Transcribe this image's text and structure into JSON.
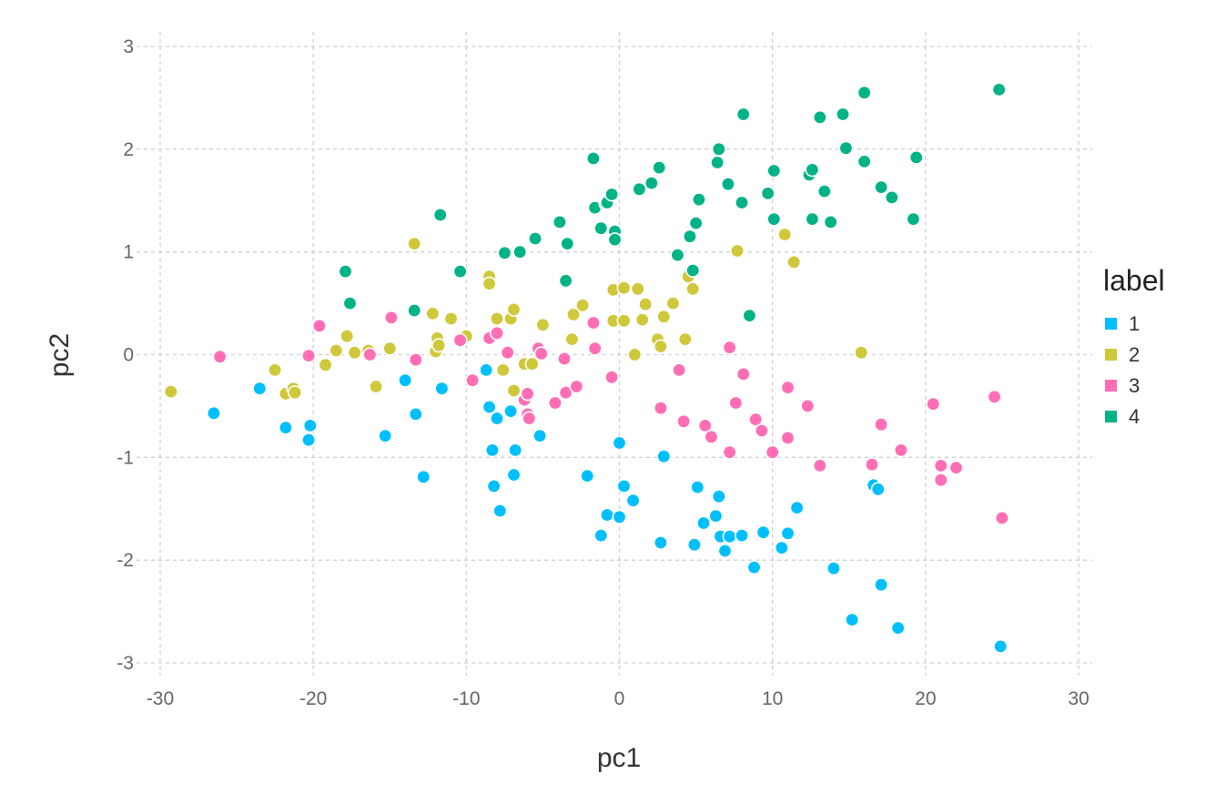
{
  "chart_data": {
    "type": "scatter",
    "xlabel": "pc1",
    "ylabel": "pc2",
    "xlim": [
      -30,
      30
    ],
    "ylim": [
      -3,
      3
    ],
    "xticks": [
      -30,
      -20,
      -10,
      0,
      10,
      20,
      30
    ],
    "yticks": [
      -3,
      -2,
      -1,
      0,
      1,
      2,
      3
    ],
    "grid": true,
    "legend": {
      "title": "label",
      "placement": "right"
    },
    "series": [
      {
        "name": "1",
        "color": "#00BFFF",
        "points": [
          [
            -26.5,
            -0.57
          ],
          [
            -23.5,
            -0.33
          ],
          [
            -21.8,
            -0.71
          ],
          [
            -20.2,
            -0.69
          ],
          [
            -20.3,
            -0.83
          ],
          [
            -15.3,
            -0.79
          ],
          [
            -14.0,
            -0.25
          ],
          [
            -13.3,
            -0.58
          ],
          [
            -12.8,
            -1.19
          ],
          [
            -11.6,
            -0.33
          ],
          [
            -8.7,
            -0.15
          ],
          [
            -8.5,
            -0.51
          ],
          [
            -8.3,
            -0.93
          ],
          [
            -8.2,
            -1.28
          ],
          [
            -8.0,
            -0.62
          ],
          [
            -7.8,
            -1.52
          ],
          [
            -7.1,
            -0.55
          ],
          [
            -6.9,
            -1.17
          ],
          [
            -6.8,
            -0.93
          ],
          [
            -5.2,
            -0.79
          ],
          [
            -2.1,
            -1.18
          ],
          [
            -1.2,
            -1.76
          ],
          [
            -0.8,
            -1.56
          ],
          [
            0.0,
            -0.86
          ],
          [
            0.0,
            -1.58
          ],
          [
            0.3,
            -1.28
          ],
          [
            0.9,
            -1.42
          ],
          [
            2.7,
            -1.83
          ],
          [
            2.9,
            -0.99
          ],
          [
            4.9,
            -1.85
          ],
          [
            5.1,
            -1.29
          ],
          [
            5.5,
            -1.64
          ],
          [
            6.3,
            -1.57
          ],
          [
            6.5,
            -1.38
          ],
          [
            6.6,
            -1.77
          ],
          [
            6.9,
            -1.91
          ],
          [
            7.2,
            -1.77
          ],
          [
            8.0,
            -1.76
          ],
          [
            8.8,
            -2.07
          ],
          [
            9.4,
            -1.73
          ],
          [
            10.6,
            -1.88
          ],
          [
            11.0,
            -1.74
          ],
          [
            11.6,
            -1.49
          ],
          [
            14.0,
            -2.08
          ],
          [
            15.2,
            -2.58
          ],
          [
            16.6,
            -1.27
          ],
          [
            16.9,
            -1.31
          ],
          [
            17.1,
            -2.24
          ],
          [
            18.2,
            -2.66
          ],
          [
            24.9,
            -2.84
          ]
        ]
      },
      {
        "name": "2",
        "color": "#CFC83A",
        "points": [
          [
            -29.3,
            -0.36
          ],
          [
            -22.5,
            -0.15
          ],
          [
            -21.8,
            -0.38
          ],
          [
            -21.3,
            -0.33
          ],
          [
            -21.2,
            -0.37
          ],
          [
            -19.2,
            -0.1
          ],
          [
            -18.5,
            0.04
          ],
          [
            -17.8,
            0.18
          ],
          [
            -17.3,
            0.02
          ],
          [
            -16.4,
            0.04
          ],
          [
            -15.9,
            -0.31
          ],
          [
            -15.0,
            0.06
          ],
          [
            -13.4,
            1.08
          ],
          [
            -12.2,
            0.4
          ],
          [
            -12.0,
            0.03
          ],
          [
            -11.9,
            0.16
          ],
          [
            -11.8,
            0.09
          ],
          [
            -11.0,
            0.35
          ],
          [
            -10.0,
            0.18
          ],
          [
            -8.5,
            0.76
          ],
          [
            -8.5,
            0.69
          ],
          [
            -8.0,
            0.35
          ],
          [
            -7.6,
            -0.15
          ],
          [
            -7.1,
            0.35
          ],
          [
            -6.9,
            0.44
          ],
          [
            -6.9,
            -0.35
          ],
          [
            -6.2,
            -0.09
          ],
          [
            -5.7,
            -0.09
          ],
          [
            -5.0,
            0.29
          ],
          [
            -3.1,
            0.15
          ],
          [
            -3.0,
            0.39
          ],
          [
            -2.4,
            0.48
          ],
          [
            -0.4,
            0.63
          ],
          [
            -0.4,
            0.33
          ],
          [
            0.3,
            0.65
          ],
          [
            0.3,
            0.33
          ],
          [
            1.0,
            0.0
          ],
          [
            1.2,
            0.64
          ],
          [
            1.5,
            0.34
          ],
          [
            1.7,
            0.49
          ],
          [
            2.5,
            0.15
          ],
          [
            2.7,
            0.08
          ],
          [
            2.9,
            0.37
          ],
          [
            3.5,
            0.5
          ],
          [
            4.3,
            0.15
          ],
          [
            4.5,
            0.76
          ],
          [
            4.8,
            0.64
          ],
          [
            7.7,
            1.01
          ],
          [
            10.8,
            1.17
          ],
          [
            11.4,
            0.9
          ],
          [
            15.8,
            0.02
          ]
        ]
      },
      {
        "name": "3",
        "color": "#FF6EB4",
        "points": [
          [
            -26.1,
            -0.02
          ],
          [
            -20.3,
            -0.01
          ],
          [
            -19.6,
            0.28
          ],
          [
            -16.3,
            0.0
          ],
          [
            -14.9,
            0.36
          ],
          [
            -13.3,
            -0.05
          ],
          [
            -10.4,
            0.14
          ],
          [
            -9.6,
            -0.25
          ],
          [
            -8.5,
            0.16
          ],
          [
            -8.0,
            0.21
          ],
          [
            -7.3,
            0.02
          ],
          [
            -6.2,
            -0.44
          ],
          [
            -6.0,
            -0.38
          ],
          [
            -6.0,
            -0.58
          ],
          [
            -5.9,
            -0.62
          ],
          [
            -5.3,
            0.06
          ],
          [
            -5.1,
            0.01
          ],
          [
            -4.2,
            -0.47
          ],
          [
            -3.6,
            -0.04
          ],
          [
            -3.5,
            -0.37
          ],
          [
            -2.8,
            -0.31
          ],
          [
            -1.7,
            0.31
          ],
          [
            -1.6,
            0.06
          ],
          [
            -0.5,
            -0.22
          ],
          [
            2.7,
            -0.52
          ],
          [
            3.9,
            -0.15
          ],
          [
            4.2,
            -0.65
          ],
          [
            5.6,
            -0.69
          ],
          [
            6.0,
            -0.8
          ],
          [
            7.2,
            0.07
          ],
          [
            7.2,
            -0.95
          ],
          [
            7.6,
            -0.47
          ],
          [
            8.1,
            -0.19
          ],
          [
            8.9,
            -0.63
          ],
          [
            9.3,
            -0.74
          ],
          [
            10.0,
            -0.95
          ],
          [
            11.0,
            -0.32
          ],
          [
            11.0,
            -0.81
          ],
          [
            12.3,
            -0.5
          ],
          [
            13.1,
            -1.08
          ],
          [
            16.5,
            -1.07
          ],
          [
            17.1,
            -0.68
          ],
          [
            18.4,
            -0.93
          ],
          [
            20.5,
            -0.48
          ],
          [
            21.0,
            -1.08
          ],
          [
            21.0,
            -1.22
          ],
          [
            22.0,
            -1.1
          ],
          [
            24.5,
            -0.41
          ],
          [
            25.0,
            -1.59
          ]
        ]
      },
      {
        "name": "4",
        "color": "#00B386",
        "points": [
          [
            -17.9,
            0.81
          ],
          [
            -17.6,
            0.5
          ],
          [
            -13.4,
            0.43
          ],
          [
            -11.7,
            1.36
          ],
          [
            -10.4,
            0.81
          ],
          [
            -7.5,
            0.99
          ],
          [
            -6.5,
            1.0
          ],
          [
            -5.5,
            1.13
          ],
          [
            -3.9,
            1.29
          ],
          [
            -3.5,
            0.72
          ],
          [
            -3.4,
            1.08
          ],
          [
            -1.7,
            1.91
          ],
          [
            -1.6,
            1.43
          ],
          [
            -1.2,
            1.23
          ],
          [
            -0.9,
            1.47
          ],
          [
            -0.8,
            1.48
          ],
          [
            -0.5,
            1.56
          ],
          [
            -0.3,
            1.2
          ],
          [
            -0.3,
            1.12
          ],
          [
            1.3,
            1.61
          ],
          [
            2.1,
            1.67
          ],
          [
            2.6,
            1.82
          ],
          [
            3.8,
            0.97
          ],
          [
            4.6,
            1.15
          ],
          [
            4.8,
            0.82
          ],
          [
            5.0,
            1.28
          ],
          [
            5.2,
            1.51
          ],
          [
            6.4,
            1.87
          ],
          [
            6.5,
            2.0
          ],
          [
            7.1,
            1.66
          ],
          [
            8.0,
            1.48
          ],
          [
            8.1,
            2.34
          ],
          [
            8.5,
            0.38
          ],
          [
            9.7,
            1.57
          ],
          [
            10.1,
            1.32
          ],
          [
            10.1,
            1.79
          ],
          [
            12.4,
            1.75
          ],
          [
            12.6,
            1.8
          ],
          [
            12.6,
            1.32
          ],
          [
            13.1,
            2.31
          ],
          [
            13.4,
            1.59
          ],
          [
            13.8,
            1.29
          ],
          [
            14.6,
            2.34
          ],
          [
            14.8,
            2.01
          ],
          [
            16.0,
            1.88
          ],
          [
            16.0,
            2.55
          ],
          [
            17.1,
            1.63
          ],
          [
            17.8,
            1.53
          ],
          [
            19.2,
            1.32
          ],
          [
            19.4,
            1.92
          ],
          [
            24.8,
            2.58
          ]
        ]
      }
    ]
  }
}
